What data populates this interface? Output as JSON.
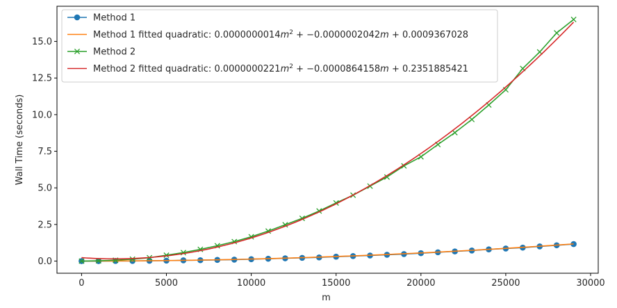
{
  "chart_data": {
    "type": "line",
    "xlabel": "m",
    "ylabel": "Wall Time (seconds)",
    "xlim": [
      -1450,
      30450
    ],
    "ylim": [
      -0.83,
      17.4
    ],
    "x_ticks": [
      0,
      5000,
      10000,
      15000,
      20000,
      25000,
      30000
    ],
    "y_ticks": [
      0.0,
      2.5,
      5.0,
      7.5,
      10.0,
      12.5,
      15.0
    ],
    "grid": false,
    "legend_position": "upper-left",
    "x": [
      0,
      1000,
      2000,
      3000,
      4000,
      5000,
      6000,
      7000,
      8000,
      9000,
      10000,
      11000,
      12000,
      13000,
      14000,
      15000,
      16000,
      17000,
      18000,
      19000,
      20000,
      21000,
      22000,
      23000,
      24000,
      25000,
      26000,
      27000,
      28000,
      29000
    ],
    "series": [
      {
        "name": "Method 1",
        "kind": "data",
        "marker": "circle",
        "color": "#1f77b4",
        "values": [
          0.0,
          0.0,
          0.01,
          0.01,
          0.02,
          0.03,
          0.05,
          0.06,
          0.08,
          0.1,
          0.13,
          0.16,
          0.19,
          0.22,
          0.25,
          0.3,
          0.34,
          0.38,
          0.43,
          0.48,
          0.54,
          0.6,
          0.66,
          0.72,
          0.8,
          0.86,
          0.92,
          1.0,
          1.08,
          1.16
        ]
      },
      {
        "name": "Method 1 fitted quadratic: 0.0000000014m² + −0.0000002042m + 0.0009367028",
        "name_parts": [
          "Method 1 fitted quadratic: 0.0000000014",
          "m",
          "2",
          " + −0.0000002042",
          "m",
          " + 0.0009367028"
        ],
        "kind": "fit",
        "color": "#ff7f0e",
        "coef": [
          1.4e-09,
          -2.042e-07,
          0.0009367028
        ]
      },
      {
        "name": "Method 2",
        "kind": "data",
        "marker": "x",
        "color": "#2ca02c",
        "values": [
          0.0,
          0.02,
          0.06,
          0.13,
          0.23,
          0.4,
          0.58,
          0.8,
          1.05,
          1.33,
          1.66,
          2.05,
          2.48,
          2.92,
          3.42,
          3.97,
          4.5,
          5.12,
          5.74,
          6.5,
          7.12,
          7.96,
          8.77,
          9.67,
          10.66,
          11.7,
          13.15,
          14.28,
          15.58,
          16.5
        ]
      },
      {
        "name": "Method 2 fitted quadratic: 0.0000000221m² + −0.0000864158m + 0.2351885421",
        "name_parts": [
          "Method 2 fitted quadratic: 0.0000000221",
          "m",
          "2",
          " + −0.0000864158",
          "m",
          " + 0.2351885421"
        ],
        "kind": "fit",
        "color": "#d62728",
        "coef": [
          2.21e-08,
          -8.64158e-05,
          0.2351885421
        ]
      }
    ]
  }
}
